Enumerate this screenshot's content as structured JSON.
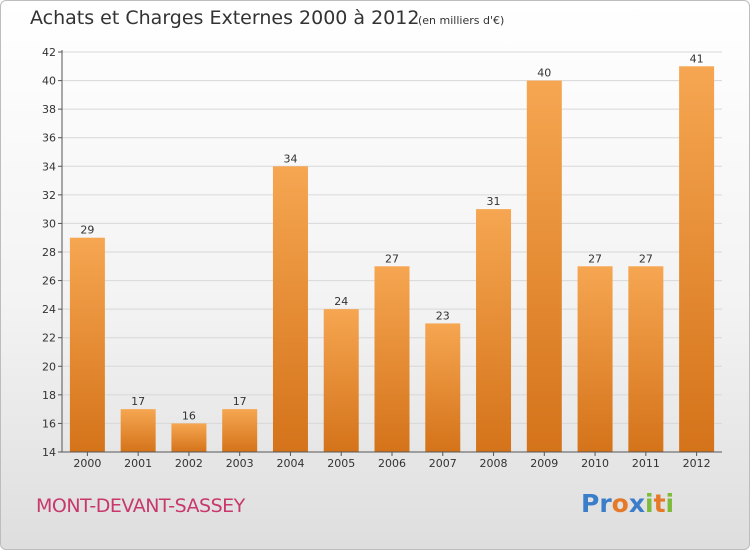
{
  "title": "Achats et Charges Externes 2000 à 2012",
  "subtitle": "(en milliers d'€)",
  "place_name": "MONT-DEVANT-SASSEY",
  "logo": {
    "text": "Proxiti",
    "letters": [
      {
        "ch": "P",
        "color": "#3a7ec9"
      },
      {
        "ch": "r",
        "color": "#3a7ec9"
      },
      {
        "ch": "o",
        "color": "#e5792a"
      },
      {
        "ch": "x",
        "color": "#3a7ec9"
      },
      {
        "ch": "i",
        "color": "#7dbb3a"
      },
      {
        "ch": "t",
        "color": "#e5792a"
      },
      {
        "ch": "i",
        "color": "#7dbb3a"
      }
    ]
  },
  "colors": {
    "bar_light": "#f6a651",
    "bar_dark": "#d4731a",
    "grid": "#d8d8d8",
    "axis": "#555555",
    "place": "#c8386b"
  },
  "chart_data": {
    "type": "bar",
    "categories": [
      "2000",
      "2001",
      "2002",
      "2003",
      "2004",
      "2005",
      "2006",
      "2007",
      "2008",
      "2009",
      "2010",
      "2011",
      "2012"
    ],
    "values": [
      29,
      17,
      16,
      17,
      34,
      24,
      27,
      23,
      31,
      40,
      27,
      27,
      41
    ],
    "data_labels": [
      "29",
      "17",
      "16",
      "17",
      "34",
      "24",
      "27",
      "23",
      "31",
      "40",
      "27",
      "27",
      "41"
    ],
    "title": "Achats et Charges Externes 2000 à 2012",
    "xlabel": "",
    "ylabel": "",
    "ylim": [
      14,
      42
    ],
    "yticks": [
      14,
      16,
      18,
      20,
      22,
      24,
      26,
      28,
      30,
      32,
      34,
      36,
      38,
      40,
      42
    ],
    "grid": true
  }
}
